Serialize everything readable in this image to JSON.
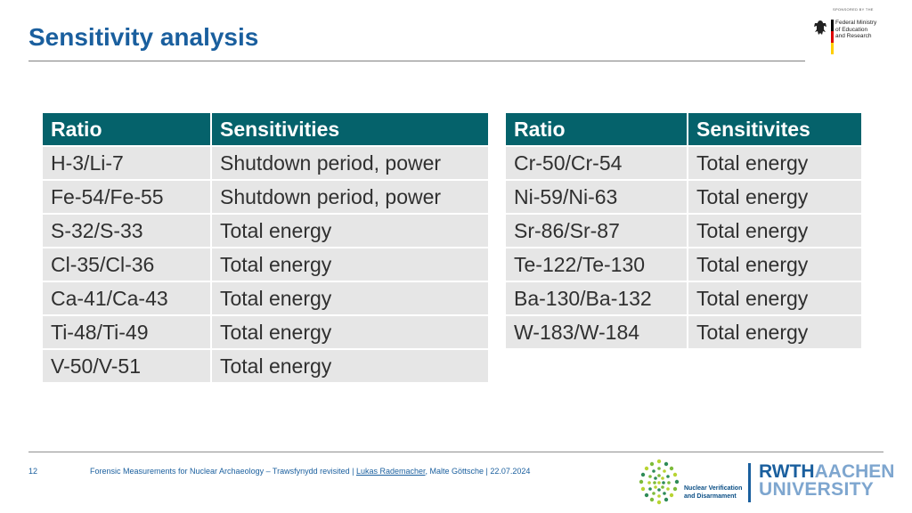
{
  "header": {
    "title": "Sensitivity analysis",
    "sponsor": {
      "caption": "SPONSORED BY THE",
      "lines": [
        "Federal Ministry",
        "of Education",
        "and Research"
      ],
      "flag_colors": [
        "#000000",
        "#dd0000",
        "#ffce00"
      ]
    }
  },
  "left_table": {
    "headers": [
      "Ratio",
      "Sensitivities"
    ],
    "rows": [
      [
        "H-3/Li-7",
        "Shutdown period, power"
      ],
      [
        "Fe-54/Fe-55",
        "Shutdown period, power"
      ],
      [
        "S-32/S-33",
        "Total energy"
      ],
      [
        "Cl-35/Cl-36",
        "Total energy"
      ],
      [
        "Ca-41/Ca-43",
        "Total energy"
      ],
      [
        "Ti-48/Ti-49",
        "Total energy"
      ],
      [
        "V-50/V-51",
        "Total energy"
      ]
    ]
  },
  "right_table": {
    "headers": [
      "Ratio",
      "Sensitivites"
    ],
    "rows": [
      [
        "Cr-50/Cr-54",
        "Total energy"
      ],
      [
        "Ni-59/Ni-63",
        "Total energy"
      ],
      [
        "Sr-86/Sr-87",
        "Total energy"
      ],
      [
        "Te-122/Te-130",
        "Total energy"
      ],
      [
        "Ba-130/Ba-132",
        "Total energy"
      ],
      [
        "W-183/W-184",
        "Total energy"
      ]
    ]
  },
  "footer": {
    "page_number": "12",
    "text_before": "Forensic Measurements for Nuclear Archaeology – Trawsfynydd revisited  |  ",
    "author_link": "Lukas Rademacher",
    "text_after": ", Malte Göttsche  |  22.07.2024",
    "nvd_lines": [
      "Nuclear Verification",
      "and Disarmament"
    ],
    "rwth_line1_bold": "RWTH",
    "rwth_line1_light": "AACHEN",
    "rwth_line2": "UNIVERSITY"
  },
  "colors": {
    "title": "#1a5f9e",
    "table_header": "#05626b",
    "table_cell": "#e6e6e6",
    "footer_text": "#1a5f9e"
  }
}
